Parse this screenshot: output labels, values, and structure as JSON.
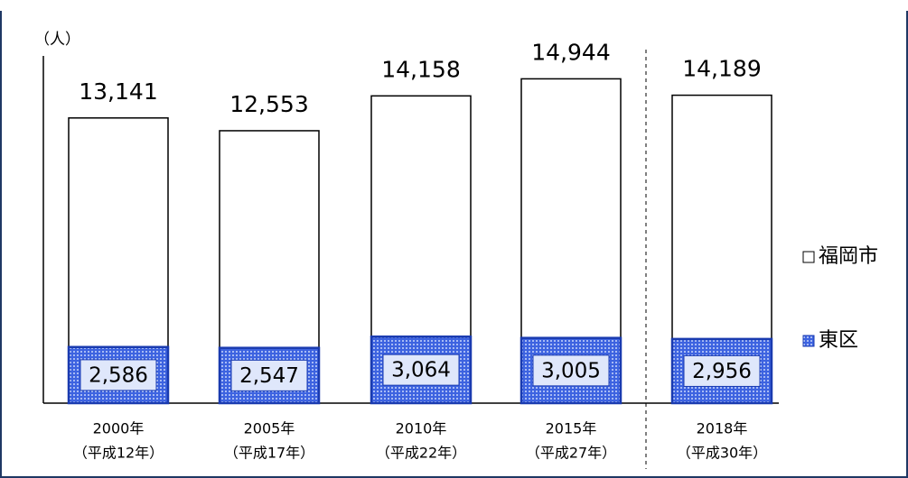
{
  "chart_data": {
    "type": "bar",
    "y_label": "（人）",
    "categories": [
      [
        "2000年",
        "（平成12年）"
      ],
      [
        "2005年",
        "（平成17年）"
      ],
      [
        "2010年",
        "（平成22年）"
      ],
      [
        "2015年",
        "（平成27年）"
      ],
      [
        "2018年",
        "（平成30年）"
      ]
    ],
    "series": [
      {
        "name": "福岡市",
        "color": "#ffffff",
        "values": [
          13141,
          12553,
          14158,
          14944,
          14189
        ],
        "value_labels": [
          "13,141",
          "12,553",
          "14,158",
          "14,944",
          "14,189"
        ]
      },
      {
        "name": "東区",
        "color": "#2a4fd6",
        "values": [
          2586,
          2547,
          3064,
          3005,
          2956
        ],
        "value_labels": [
          "2,586",
          "2,547",
          "3,064",
          "3,005",
          "2,956"
        ]
      }
    ],
    "ylim": [
      0,
      16000
    ],
    "legend": "right"
  }
}
